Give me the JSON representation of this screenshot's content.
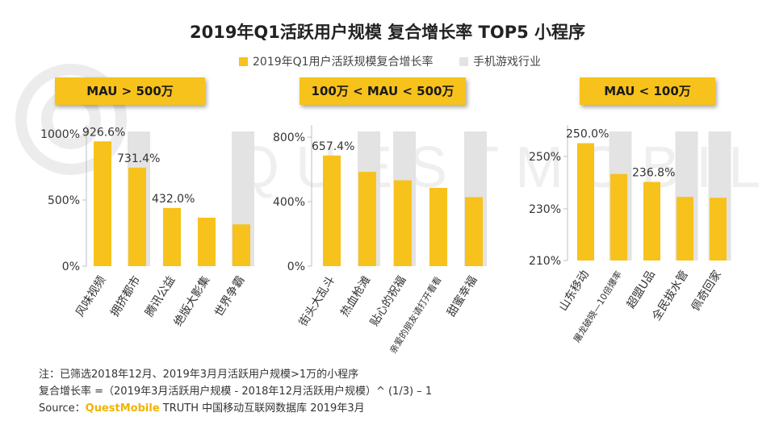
{
  "title": "2019年Q1活跃用户规模 复合增长率 TOP5 小程序",
  "watermark": "QUESTMOBILE",
  "legend": [
    {
      "label": "2019年Q1用户活跃规模复合增长率",
      "color": "#f7c21b"
    },
    {
      "label": "手机游戏行业",
      "color": "#e3e3e3"
    }
  ],
  "colors": {
    "bar": "#f7c21b",
    "background_band": "#e3e3e3",
    "axis": "#bfbfbf"
  },
  "chart_data": [
    {
      "type": "bar",
      "group_label": "MAU > 500万",
      "categories": [
        "风味视频",
        "拥挤都市",
        "腾讯公益",
        "绝版大影集",
        "世界争霸"
      ],
      "values": [
        926.6,
        731.4,
        432.0,
        360,
        310
      ],
      "data_labels": [
        "926.6%",
        "731.4%",
        "432.0%",
        "",
        ""
      ],
      "band_categories": [
        "拥挤都市",
        "世界争霸"
      ],
      "yticks": [
        0,
        500,
        1000
      ],
      "ytick_labels": [
        "0%",
        "500%",
        "1000%"
      ],
      "ylim": [
        0,
        1000
      ]
    },
    {
      "type": "bar",
      "group_label": "100万 < MAU < 500万",
      "categories": [
        "街头大乱斗",
        "热血枪滩",
        "贴心的祝福",
        "亲爱的朋友请打开看看",
        "甜蜜幸福"
      ],
      "values": [
        657.4,
        560,
        510,
        465,
        410
      ],
      "data_labels": [
        "657.4%",
        "",
        "",
        "",
        ""
      ],
      "band_categories": [
        "热血枪滩",
        "贴心的祝福",
        "甜蜜幸福"
      ],
      "yticks": [
        0,
        400,
        800
      ],
      "ytick_labels": [
        "0%",
        "400%",
        "800%"
      ],
      "ylim": [
        0,
        800
      ]
    },
    {
      "type": "bar",
      "group_label": "MAU < 100万",
      "categories": [
        "山东移动",
        "屠龙破晓—10倍爆率",
        "超盟U品",
        "全民拔水管",
        "佩奇回家"
      ],
      "values": [
        250.0,
        239.5,
        236.8,
        231.7,
        231.4
      ],
      "data_labels": [
        "250.0%",
        "",
        "236.8%",
        "",
        ""
      ],
      "band_categories": [
        "屠龙破晓—10倍爆率",
        "全民拔水管",
        "佩奇回家"
      ],
      "yticks": [
        210,
        230,
        250
      ],
      "ytick_labels": [
        "210%",
        "230%",
        "250%"
      ],
      "ylim": [
        210,
        254
      ]
    }
  ],
  "notes": {
    "line1": "注：已筛选2018年12月、2019年3月月活跃用户规模>1万的小程序",
    "line2": "复合增长率 =（2019年3月活跃用户规模 - 2018年12月活跃用户规模）^ (1/3) – 1",
    "source_prefix": "Source：",
    "source_brand": "QuestMobile",
    "source_suffix": " TRUTH 中国移动互联网数据库 2019年3月"
  }
}
